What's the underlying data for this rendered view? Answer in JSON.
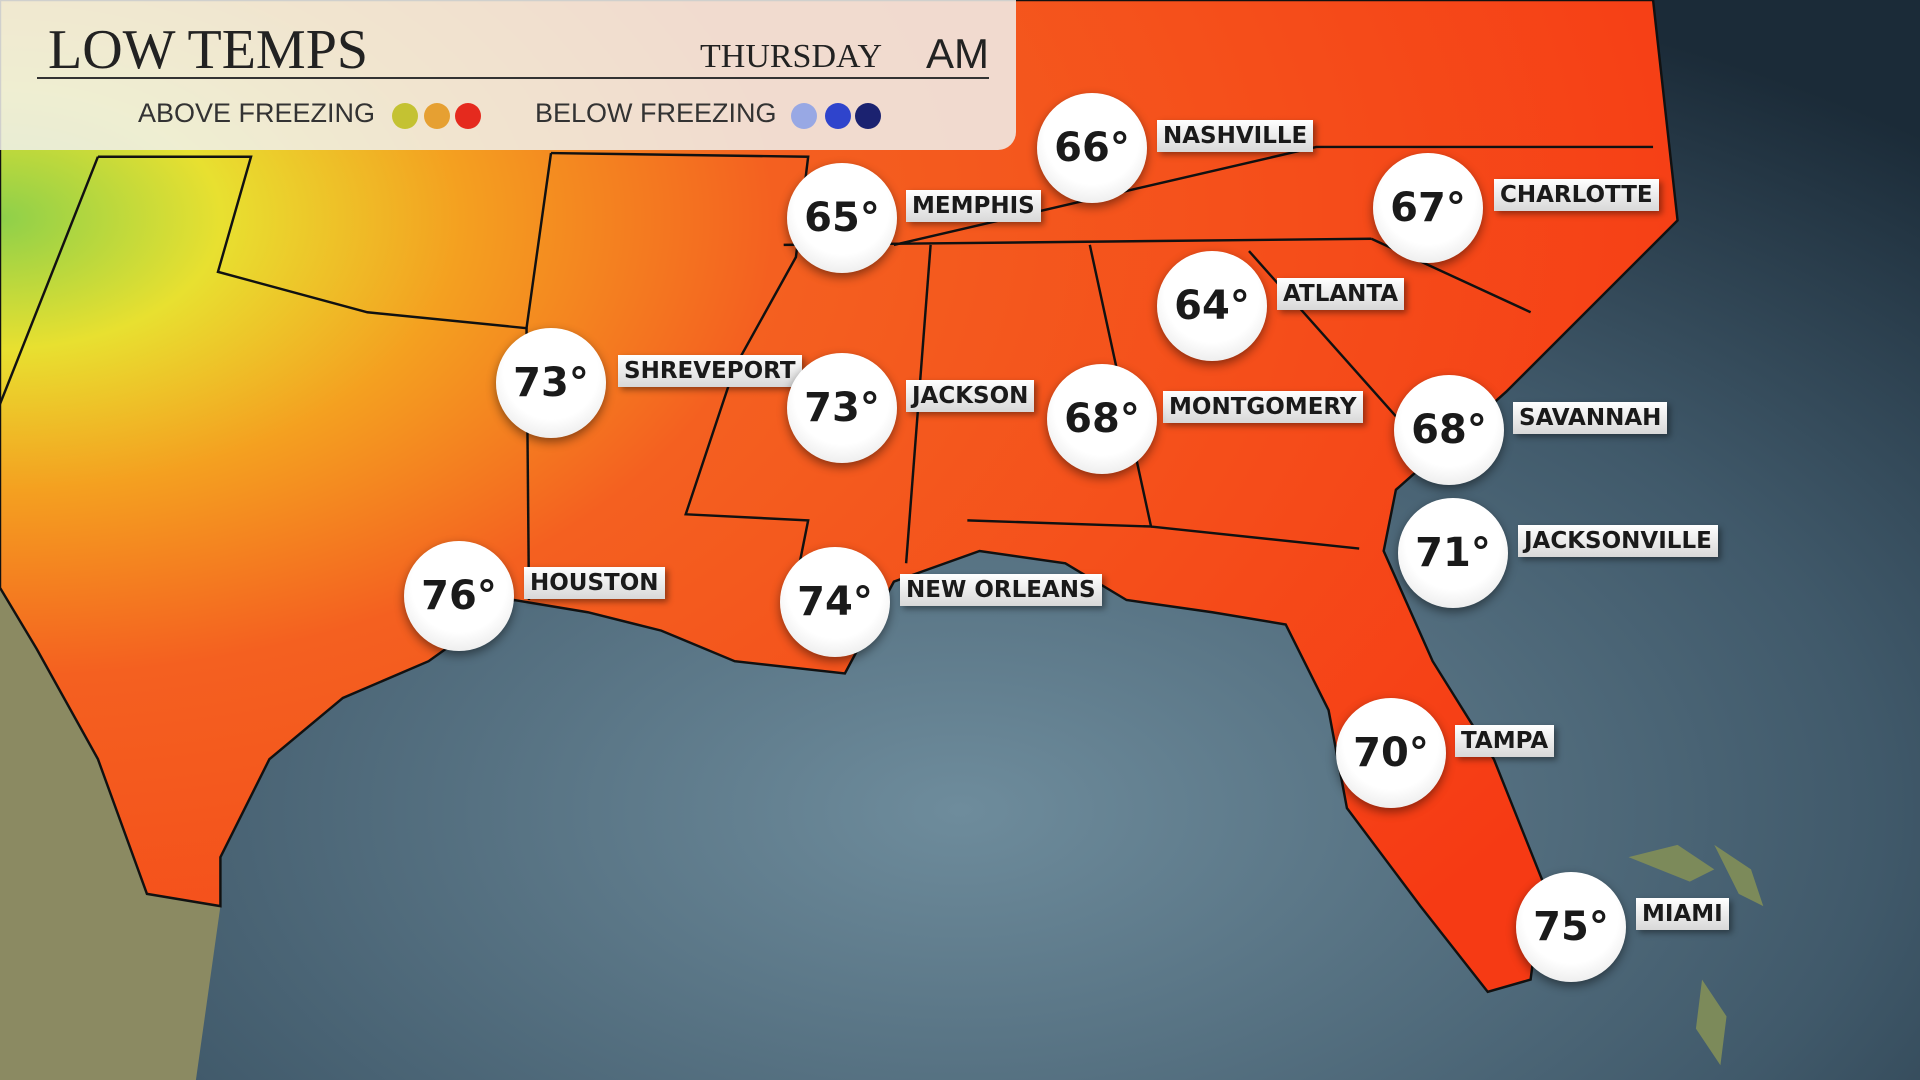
{
  "header": {
    "title": "LOW TEMPS",
    "day": "THURSDAY",
    "period": "AM"
  },
  "legend": [
    {
      "label": "ABOVE FREEZING",
      "colors": [
        "#c4c232",
        "#e6a032",
        "#e52a1e"
      ]
    },
    {
      "label": "BELOW FREEZING",
      "colors": [
        "#98a8e4",
        "#2f44cc",
        "#1b2270"
      ]
    }
  ],
  "cities": [
    {
      "name": "NASHVILLE",
      "temp": "66°"
    },
    {
      "name": "MEMPHIS",
      "temp": "65°"
    },
    {
      "name": "CHARLOTTE",
      "temp": "67°"
    },
    {
      "name": "ATLANTA",
      "temp": "64°"
    },
    {
      "name": "SHREVEPORT",
      "temp": "73°"
    },
    {
      "name": "JACKSON",
      "temp": "73°"
    },
    {
      "name": "MONTGOMERY",
      "temp": "68°"
    },
    {
      "name": "SAVANNAH",
      "temp": "68°"
    },
    {
      "name": "JACKSONVILLE",
      "temp": "71°"
    },
    {
      "name": "HOUSTON",
      "temp": "76°"
    },
    {
      "name": "NEW ORLEANS",
      "temp": "74°"
    },
    {
      "name": "TAMPA",
      "temp": "70°"
    },
    {
      "name": "MIAMI",
      "temp": "75°"
    }
  ]
}
